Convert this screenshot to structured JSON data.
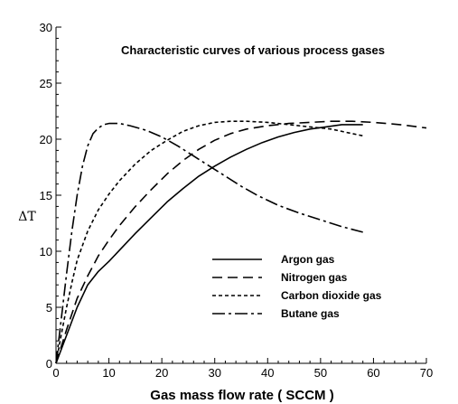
{
  "chart_data": {
    "type": "line",
    "title": "Characteristic curves of various process gases",
    "xlabel": "Gas mass flow rate ( SCCM )",
    "ylabel": "ΔT",
    "xlim": [
      0,
      70
    ],
    "ylim": [
      0,
      30
    ],
    "xticks": [
      0,
      10,
      20,
      30,
      40,
      50,
      60,
      70
    ],
    "yticks": [
      0,
      5,
      10,
      15,
      20,
      25,
      30
    ],
    "grid": false,
    "legend_position": "bottom-right",
    "series": [
      {
        "name": "Argon gas",
        "dash": "solid",
        "x": [
          0,
          2,
          4,
          6,
          8,
          10,
          12,
          15,
          18,
          21,
          24,
          27,
          30,
          33,
          36,
          39,
          42,
          45,
          48,
          51,
          54,
          57,
          58
        ],
        "y": [
          0,
          2.5,
          5.0,
          7.0,
          8.2,
          9.1,
          10.1,
          11.6,
          13.0,
          14.4,
          15.6,
          16.7,
          17.6,
          18.4,
          19.1,
          19.7,
          20.2,
          20.6,
          20.9,
          21.1,
          21.3,
          21.3,
          21.3
        ]
      },
      {
        "name": "Nitrogen gas",
        "dash": "dashed",
        "x": [
          0,
          2,
          4,
          6,
          8,
          10,
          12,
          15,
          18,
          21,
          24,
          27,
          30,
          33,
          36,
          40,
          44,
          48,
          52,
          56,
          60,
          65,
          70
        ],
        "y": [
          0,
          3.0,
          5.8,
          7.8,
          9.6,
          11.0,
          12.3,
          14.0,
          15.5,
          16.9,
          18.1,
          19.1,
          19.9,
          20.5,
          20.9,
          21.2,
          21.4,
          21.5,
          21.6,
          21.6,
          21.5,
          21.3,
          21.0
        ]
      },
      {
        "name": "Carbon dioxide gas",
        "dash": "dotted",
        "x": [
          0,
          1,
          2,
          3,
          4,
          6,
          8,
          10,
          12,
          15,
          18,
          21,
          24,
          27,
          30,
          33,
          36,
          40,
          44,
          48,
          52,
          55,
          58
        ],
        "y": [
          0,
          2.6,
          5.0,
          7.2,
          9.2,
          11.8,
          13.7,
          15.1,
          16.3,
          17.8,
          19.0,
          19.9,
          20.7,
          21.2,
          21.5,
          21.6,
          21.6,
          21.5,
          21.3,
          21.1,
          20.9,
          20.6,
          20.3
        ]
      },
      {
        "name": "Butane gas",
        "dash": "dashdot",
        "x": [
          0,
          1,
          2,
          3,
          4,
          5,
          6,
          7,
          8,
          9,
          10,
          12,
          14,
          17,
          20,
          23,
          26,
          29,
          32,
          35,
          38,
          42,
          46,
          50,
          54,
          58
        ],
        "y": [
          0,
          4.0,
          8.0,
          11.8,
          15.0,
          17.6,
          19.4,
          20.5,
          21.0,
          21.3,
          21.4,
          21.4,
          21.2,
          20.8,
          20.2,
          19.4,
          18.5,
          17.6,
          16.7,
          15.8,
          15.0,
          14.1,
          13.4,
          12.8,
          12.2,
          11.7
        ]
      }
    ]
  }
}
